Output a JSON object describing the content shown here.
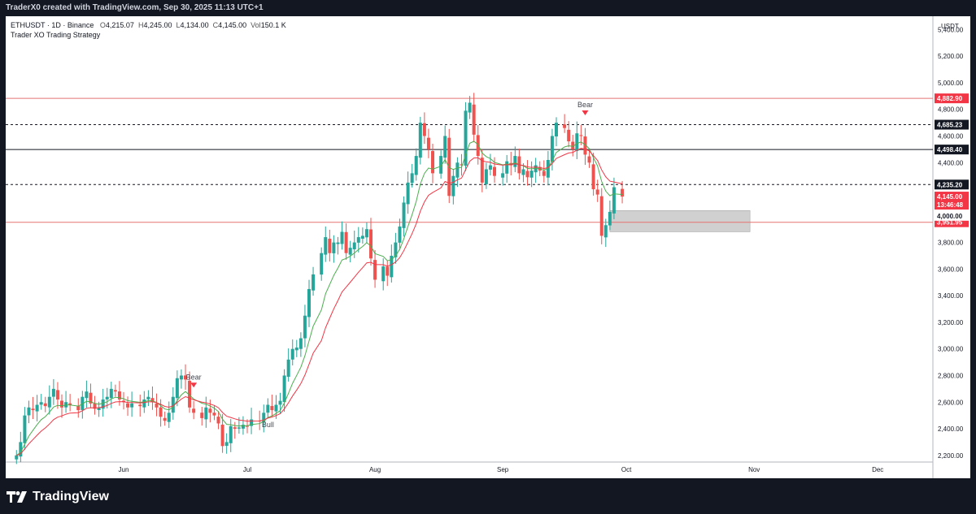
{
  "header": {
    "credit": "TraderX0 created with TradingView.com, Sep 30, 2025 11:13 UTC+1"
  },
  "legend": {
    "symbol": "ETHUSDT · 1D · Binance",
    "open_label": "O",
    "open": "4,215.07",
    "high_label": "H",
    "high": "4,245.00",
    "low_label": "L",
    "low": "4,134.00",
    "close_label": "C",
    "close": "4,145.00",
    "vol_label": "Vol",
    "vol": "150.1 K",
    "indicator": "Trader XO Trading Strategy"
  },
  "footer": {
    "brand": "TradingView"
  },
  "colors": {
    "up": "#26a69a",
    "down": "#ef5350",
    "ema_fast": "#4caf50",
    "ema_slow": "#f23645",
    "background": "#131722",
    "pane": "#ffffff",
    "red_line": "#e57373",
    "zone": "#c8c8c8"
  },
  "chart_data": {
    "type": "candlestick",
    "currency": "USDT",
    "y_range": [
      2150,
      5500
    ],
    "y_ticks": [
      "5,400.00",
      "5,200.00",
      "5,000.00",
      "4,800.00",
      "4,600.00",
      "4,400.00",
      "4,000.00",
      "3,800.00",
      "3,600.00",
      "3,400.00",
      "3,200.00",
      "3,000.00",
      "2,800.00",
      "2,600.00",
      "2,400.00",
      "2,200.00"
    ],
    "y_tick_values": [
      5400,
      5200,
      5000,
      4800,
      4600,
      4400,
      4000,
      3800,
      3600,
      3400,
      3200,
      3000,
      2800,
      2600,
      2400,
      2200
    ],
    "x_labels": [
      {
        "label": "Jun",
        "date": "2025-06-01"
      },
      {
        "label": "Jul",
        "date": "2025-07-01"
      },
      {
        "label": "Aug",
        "date": "2025-08-01"
      },
      {
        "label": "Sep",
        "date": "2025-09-01"
      },
      {
        "label": "Oct",
        "date": "2025-10-01"
      },
      {
        "label": "Nov",
        "date": "2025-11-01"
      },
      {
        "label": "Dec",
        "date": "2025-12-01"
      }
    ],
    "candles_start": "2025-05-06",
    "candles_end": "2025-09-30",
    "closes": [
      2200,
      2300,
      2500,
      2560,
      2540,
      2580,
      2600,
      2570,
      2640,
      2700,
      2620,
      2560,
      2600,
      2580,
      2540,
      2640,
      2680,
      2590,
      2550,
      2560,
      2620,
      2640,
      2700,
      2680,
      2620,
      2600,
      2560,
      2590,
      2570,
      2620,
      2640,
      2600,
      2560,
      2490,
      2460,
      2520,
      2640,
      2780,
      2800,
      2770,
      2560,
      2520,
      2480,
      2560,
      2520,
      2500,
      2440,
      2270,
      2300,
      2420,
      2400,
      2410,
      2430,
      2420,
      2470,
      2460,
      2520,
      2580,
      2540,
      2580,
      2610,
      2800,
      2920,
      3000,
      3010,
      3080,
      3250,
      3450,
      3560,
      3720,
      3840,
      3720,
      3800,
      3800,
      3880,
      3720,
      3760,
      3800,
      3840,
      3850,
      3900,
      3680,
      3520,
      3620,
      3550,
      3700,
      3800,
      3920,
      4100,
      4250,
      4320,
      4450,
      4700,
      4600,
      4500,
      4320,
      4450,
      4600,
      4150,
      4300,
      4400,
      4380,
      4790,
      4850,
      4610,
      4450,
      4250,
      4350,
      4380,
      4300,
      4320,
      4410,
      4380,
      4450,
      4320,
      4350,
      4290,
      4340,
      4380,
      4340,
      4300,
      4420,
      4600,
      4700,
      4660,
      4560,
      4500,
      4620,
      4600,
      4460,
      4400,
      4200,
      4160,
      3850,
      3930,
      4030,
      4215,
      4145
    ],
    "ema_fast_series": "Trader XO fast EMA",
    "ema_slow_series": "Trader XO slow EMA",
    "signals": [
      {
        "text": "Bear",
        "date": "2025-06-19",
        "direction": "bear"
      },
      {
        "text": "Bull",
        "date": "2025-07-06",
        "direction": "bull"
      },
      {
        "text": "Bear",
        "date": "2025-09-21",
        "direction": "bear"
      }
    ],
    "horizontal_levels": [
      {
        "value": 4882.9,
        "label": "4,882.90",
        "style": "solid",
        "color": "#e57373"
      },
      {
        "value": 4685.23,
        "label": "4,685.23",
        "style": "dashed",
        "color": "#131722"
      },
      {
        "value": 4498.4,
        "label": "4,498.40",
        "style": "solid",
        "color": "#131722"
      },
      {
        "value": 4235.2,
        "label": "4,235.20",
        "style": "dashed",
        "color": "#131722"
      },
      {
        "value": 3951.95,
        "label": "3,951.95",
        "style": "solid",
        "color": "#e57373"
      }
    ],
    "last_price": {
      "value": 4145.0,
      "label": "4,145.00",
      "countdown": "13:46:48"
    },
    "other_tag": {
      "value": 4000,
      "label": "4,000.00"
    },
    "zone": {
      "y_top": 4040,
      "y_bottom": 3880,
      "x_start": "2025-09-27",
      "x_end": "2025-10-31"
    }
  }
}
